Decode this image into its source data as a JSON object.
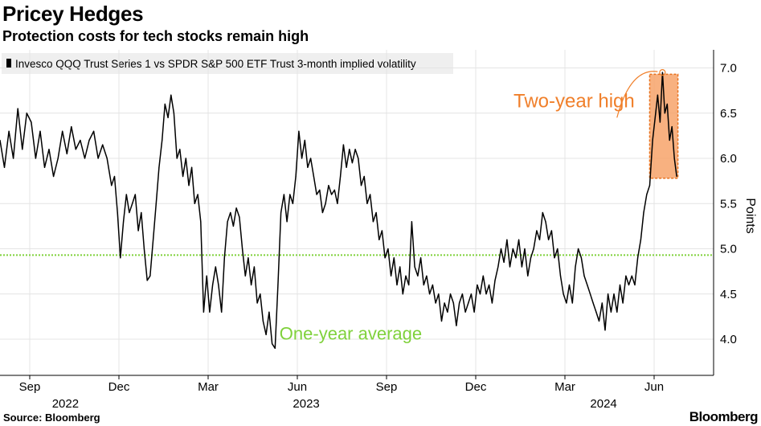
{
  "header": {
    "title": "Pricey Hedges",
    "subtitle": "Protection costs for tech stocks remain high"
  },
  "footer": {
    "source": "Source: Bloomberg",
    "brand": "Bloomberg"
  },
  "colors": {
    "series": "#000000",
    "average_line": "#7fd13b",
    "highlight": "#f7a36a",
    "highlight_border": "#e8711d",
    "annotation": "#f07f2a",
    "grid": "#e4e4e4"
  },
  "chart_data": {
    "type": "line",
    "title": "Pricey Hedges",
    "subtitle": "Protection costs for tech stocks remain high",
    "ylabel": "Points",
    "ylim": [
      3.6,
      7.2
    ],
    "yticks": [
      4.0,
      4.5,
      5.0,
      5.5,
      6.0,
      6.5,
      7.0
    ],
    "ytick_labels": [
      "4.0",
      "4.5",
      "5.0",
      "5.5",
      "6.0",
      "6.5",
      "7.0"
    ],
    "xlim": [
      0,
      24
    ],
    "xticks": [
      {
        "x": 1,
        "label": "Sep"
      },
      {
        "x": 4,
        "label": "Dec"
      },
      {
        "x": 7,
        "label": "Mar"
      },
      {
        "x": 10,
        "label": "Jun"
      },
      {
        "x": 13,
        "label": "Sep"
      },
      {
        "x": 16,
        "label": "Dec"
      },
      {
        "x": 19,
        "label": "Mar"
      },
      {
        "x": 22,
        "label": "Jun"
      }
    ],
    "year_labels": [
      {
        "x": 2.2,
        "label": "2022"
      },
      {
        "x": 10.3,
        "label": "2023"
      },
      {
        "x": 20.3,
        "label": "2024"
      }
    ],
    "grid": true,
    "legend": "top-left",
    "series": [
      {
        "name": "Invesco QQQ Trust Series 1 vs SPDR S&P 500 ETF Trust 3-month implied volatility",
        "points": [
          [
            0,
            6.2
          ],
          [
            0.15,
            5.9
          ],
          [
            0.3,
            6.3
          ],
          [
            0.45,
            6.0
          ],
          [
            0.6,
            6.55
          ],
          [
            0.75,
            6.1
          ],
          [
            0.9,
            6.5
          ],
          [
            1.05,
            6.4
          ],
          [
            1.2,
            6.0
          ],
          [
            1.35,
            6.3
          ],
          [
            1.5,
            5.9
          ],
          [
            1.65,
            6.1
          ],
          [
            1.8,
            5.8
          ],
          [
            1.95,
            6.0
          ],
          [
            2.1,
            6.3
          ],
          [
            2.25,
            6.05
          ],
          [
            2.4,
            6.35
          ],
          [
            2.55,
            6.1
          ],
          [
            2.7,
            6.2
          ],
          [
            2.85,
            6.0
          ],
          [
            3.0,
            6.2
          ],
          [
            3.15,
            6.3
          ],
          [
            3.3,
            6.0
          ],
          [
            3.45,
            6.15
          ],
          [
            3.6,
            6.0
          ],
          [
            3.75,
            5.7
          ],
          [
            3.85,
            5.8
          ],
          [
            3.95,
            5.4
          ],
          [
            4.05,
            4.9
          ],
          [
            4.15,
            5.3
          ],
          [
            4.25,
            5.6
          ],
          [
            4.35,
            5.4
          ],
          [
            4.45,
            5.5
          ],
          [
            4.55,
            5.6
          ],
          [
            4.65,
            5.2
          ],
          [
            4.75,
            5.4
          ],
          [
            4.85,
            5.0
          ],
          [
            4.95,
            4.65
          ],
          [
            5.05,
            4.7
          ],
          [
            5.15,
            5.1
          ],
          [
            5.25,
            5.5
          ],
          [
            5.35,
            5.9
          ],
          [
            5.45,
            6.2
          ],
          [
            5.55,
            6.6
          ],
          [
            5.65,
            6.45
          ],
          [
            5.75,
            6.7
          ],
          [
            5.85,
            6.5
          ],
          [
            5.95,
            6.0
          ],
          [
            6.05,
            6.1
          ],
          [
            6.15,
            5.8
          ],
          [
            6.25,
            6.0
          ],
          [
            6.35,
            5.7
          ],
          [
            6.45,
            5.9
          ],
          [
            6.55,
            5.5
          ],
          [
            6.65,
            5.6
          ],
          [
            6.75,
            5.3
          ],
          [
            6.85,
            4.3
          ],
          [
            6.95,
            4.7
          ],
          [
            7.05,
            4.3
          ],
          [
            7.15,
            4.6
          ],
          [
            7.25,
            4.8
          ],
          [
            7.35,
            4.6
          ],
          [
            7.45,
            4.3
          ],
          [
            7.55,
            4.9
          ],
          [
            7.65,
            5.3
          ],
          [
            7.75,
            5.4
          ],
          [
            7.85,
            5.25
          ],
          [
            7.95,
            5.45
          ],
          [
            8.05,
            5.35
          ],
          [
            8.15,
            5.0
          ],
          [
            8.25,
            4.7
          ],
          [
            8.35,
            4.9
          ],
          [
            8.45,
            4.6
          ],
          [
            8.55,
            4.8
          ],
          [
            8.65,
            4.4
          ],
          [
            8.75,
            4.5
          ],
          [
            8.85,
            4.2
          ],
          [
            8.95,
            4.05
          ],
          [
            9.05,
            4.3
          ],
          [
            9.15,
            3.95
          ],
          [
            9.25,
            3.9
          ],
          [
            9.35,
            4.6
          ],
          [
            9.45,
            5.4
          ],
          [
            9.55,
            5.6
          ],
          [
            9.65,
            5.3
          ],
          [
            9.75,
            5.6
          ],
          [
            9.85,
            5.5
          ],
          [
            9.95,
            5.8
          ],
          [
            10.05,
            6.3
          ],
          [
            10.15,
            6.0
          ],
          [
            10.25,
            6.2
          ],
          [
            10.35,
            5.9
          ],
          [
            10.45,
            6.0
          ],
          [
            10.55,
            5.8
          ],
          [
            10.65,
            5.6
          ],
          [
            10.75,
            5.65
          ],
          [
            10.85,
            5.4
          ],
          [
            10.95,
            5.5
          ],
          [
            11.05,
            5.7
          ],
          [
            11.15,
            5.6
          ],
          [
            11.25,
            5.65
          ],
          [
            11.35,
            5.5
          ],
          [
            11.45,
            5.8
          ],
          [
            11.55,
            6.15
          ],
          [
            11.65,
            5.9
          ],
          [
            11.75,
            6.1
          ],
          [
            11.85,
            5.95
          ],
          [
            11.95,
            6.1
          ],
          [
            12.05,
            6.0
          ],
          [
            12.15,
            5.7
          ],
          [
            12.25,
            5.8
          ],
          [
            12.35,
            5.5
          ],
          [
            12.45,
            5.6
          ],
          [
            12.55,
            5.3
          ],
          [
            12.65,
            5.4
          ],
          [
            12.75,
            5.1
          ],
          [
            12.85,
            5.2
          ],
          [
            12.95,
            4.9
          ],
          [
            13.05,
            5.0
          ],
          [
            13.15,
            4.7
          ],
          [
            13.25,
            4.9
          ],
          [
            13.35,
            4.6
          ],
          [
            13.45,
            4.8
          ],
          [
            13.55,
            4.5
          ],
          [
            13.65,
            4.7
          ],
          [
            13.75,
            4.6
          ],
          [
            13.85,
            5.3
          ],
          [
            13.95,
            4.8
          ],
          [
            14.05,
            4.7
          ],
          [
            14.15,
            4.9
          ],
          [
            14.25,
            4.6
          ],
          [
            14.35,
            4.7
          ],
          [
            14.45,
            4.5
          ],
          [
            14.55,
            4.6
          ],
          [
            14.65,
            4.4
          ],
          [
            14.75,
            4.5
          ],
          [
            14.85,
            4.2
          ],
          [
            14.95,
            4.4
          ],
          [
            15.05,
            4.3
          ],
          [
            15.15,
            4.5
          ],
          [
            15.25,
            4.4
          ],
          [
            15.35,
            4.15
          ],
          [
            15.45,
            4.4
          ],
          [
            15.55,
            4.5
          ],
          [
            15.65,
            4.3
          ],
          [
            15.75,
            4.4
          ],
          [
            15.85,
            4.5
          ],
          [
            15.95,
            4.3
          ],
          [
            16.05,
            4.6
          ],
          [
            16.15,
            4.5
          ],
          [
            16.25,
            4.7
          ],
          [
            16.35,
            4.5
          ],
          [
            16.45,
            4.6
          ],
          [
            16.55,
            4.4
          ],
          [
            16.65,
            4.65
          ],
          [
            16.75,
            4.8
          ],
          [
            16.85,
            5.0
          ],
          [
            16.95,
            4.85
          ],
          [
            17.05,
            5.1
          ],
          [
            17.15,
            4.8
          ],
          [
            17.25,
            5.0
          ],
          [
            17.35,
            4.9
          ],
          [
            17.45,
            5.1
          ],
          [
            17.55,
            4.8
          ],
          [
            17.65,
            5.0
          ],
          [
            17.75,
            4.7
          ],
          [
            17.85,
            4.9
          ],
          [
            17.95,
            5.0
          ],
          [
            18.05,
            5.2
          ],
          [
            18.15,
            5.1
          ],
          [
            18.25,
            5.4
          ],
          [
            18.35,
            5.3
          ],
          [
            18.45,
            5.1
          ],
          [
            18.55,
            5.2
          ],
          [
            18.65,
            4.9
          ],
          [
            18.75,
            5.0
          ],
          [
            18.85,
            4.7
          ],
          [
            18.95,
            4.5
          ],
          [
            19.05,
            4.4
          ],
          [
            19.15,
            4.6
          ],
          [
            19.25,
            4.4
          ],
          [
            19.35,
            4.8
          ],
          [
            19.45,
            5.0
          ],
          [
            19.55,
            4.9
          ],
          [
            19.65,
            4.7
          ],
          [
            19.75,
            4.6
          ],
          [
            19.85,
            4.5
          ],
          [
            19.95,
            4.4
          ],
          [
            20.05,
            4.3
          ],
          [
            20.15,
            4.2
          ],
          [
            20.25,
            4.4
          ],
          [
            20.35,
            4.1
          ],
          [
            20.45,
            4.5
          ],
          [
            20.55,
            4.3
          ],
          [
            20.65,
            4.5
          ],
          [
            20.75,
            4.3
          ],
          [
            20.85,
            4.6
          ],
          [
            20.95,
            4.4
          ],
          [
            21.05,
            4.7
          ],
          [
            21.15,
            4.6
          ],
          [
            21.25,
            4.7
          ],
          [
            21.35,
            4.6
          ],
          [
            21.45,
            4.9
          ],
          [
            21.55,
            5.1
          ],
          [
            21.65,
            5.4
          ],
          [
            21.75,
            5.6
          ],
          [
            21.85,
            5.7
          ],
          [
            21.95,
            6.2
          ],
          [
            22.05,
            6.5
          ],
          [
            22.12,
            6.7
          ],
          [
            22.2,
            6.4
          ],
          [
            22.28,
            6.95
          ],
          [
            22.36,
            6.5
          ],
          [
            22.44,
            6.6
          ],
          [
            22.52,
            6.2
          ],
          [
            22.6,
            6.35
          ],
          [
            22.68,
            6.0
          ],
          [
            22.76,
            5.8
          ]
        ]
      }
    ],
    "reference_line": {
      "label": "One-year average",
      "value": 4.93
    },
    "annotations": [
      {
        "label": "Two-year high",
        "x_range": [
          21.85,
          22.8
        ],
        "y_range": [
          5.78,
          6.93
        ],
        "peak": [
          22.28,
          6.95
        ]
      }
    ]
  }
}
